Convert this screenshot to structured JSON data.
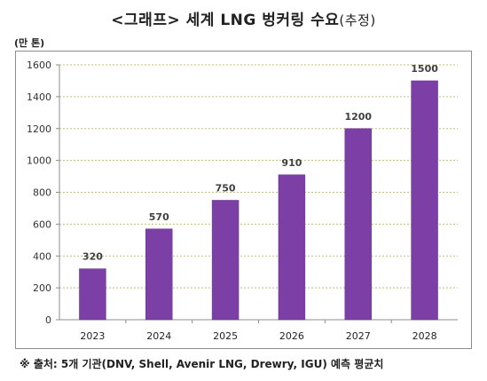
{
  "page": {
    "title_main": "<그래프> 세계 LNG 벙커링 수요",
    "title_suffix": "(추정)",
    "unit_label": "(만 톤)",
    "source_note": "※ 출처: 5개 기관(DNV, Shell, Avenir LNG, Drewry, IGU) 예측 평균치"
  },
  "chart_data": {
    "type": "bar",
    "title": "<그래프> 세계 LNG 벙커링 수요(추정)",
    "ylabel": "(만 톤)",
    "xlabel": "",
    "categories": [
      "2023",
      "2024",
      "2025",
      "2026",
      "2027",
      "2028"
    ],
    "values": [
      320,
      570,
      750,
      910,
      1200,
      1500
    ],
    "ylim": [
      0,
      1600
    ],
    "yticks": [
      0,
      200,
      400,
      600,
      800,
      1000,
      1200,
      1400,
      1600
    ],
    "grid": true,
    "data_labels": true,
    "legend": "none",
    "colors": {
      "bar": "#7b3fa6",
      "bar_edge": "#6a3192",
      "grid": "#bfbf7a",
      "axis": "#8c8c8c",
      "label": "#404040"
    }
  }
}
